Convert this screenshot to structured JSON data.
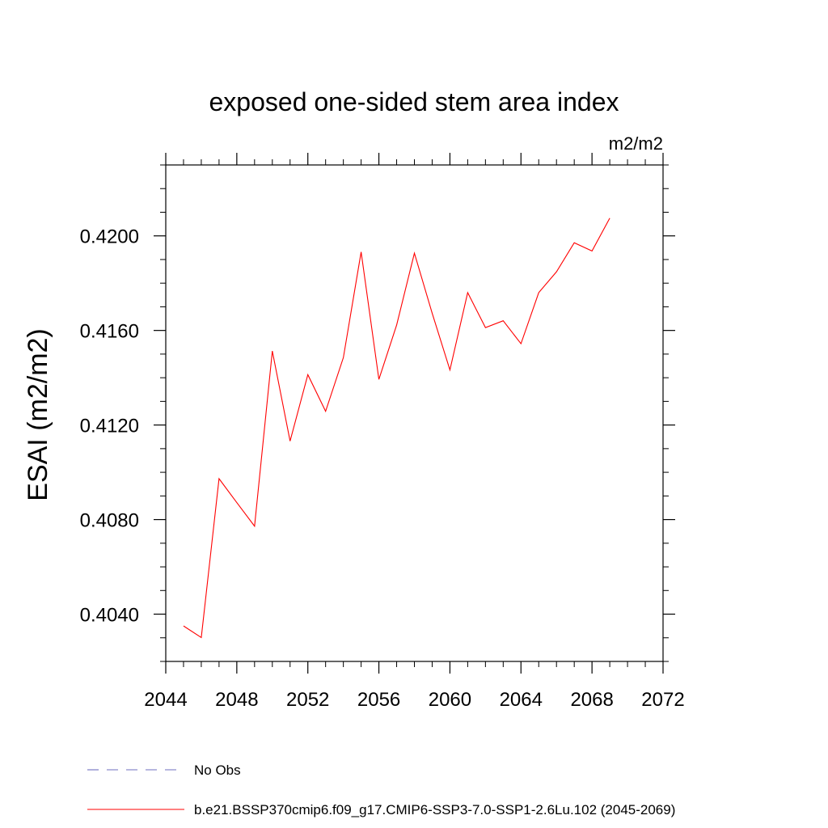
{
  "chart_data": {
    "type": "line",
    "title": "exposed one-sided stem area index",
    "units_label": "m2/m2",
    "ylabel": "ESAI  (m2/m2)",
    "xlabel": "",
    "xlim": [
      2044,
      2072
    ],
    "ylim": [
      0.402,
      0.423
    ],
    "x_ticks": [
      2044,
      2048,
      2052,
      2056,
      2060,
      2064,
      2068,
      2072
    ],
    "x_tick_labels": [
      "2044",
      "2048",
      "2052",
      "2056",
      "2060",
      "2064",
      "2068",
      "2072"
    ],
    "y_ticks": [
      0.404,
      0.408,
      0.412,
      0.416,
      0.42
    ],
    "y_tick_labels": [
      "0.4040",
      "0.4080",
      "0.4120",
      "0.4160",
      "0.4200"
    ],
    "grid": false,
    "legend_position": "bottom",
    "series": [
      {
        "name": "b.e21.BSSP370cmip6.f09_g17.CMIP6-SSP3-7.0-SSP1-2.6Lu.102 (2045-2069)",
        "color": "#ff0000",
        "style": "solid",
        "x": [
          2045,
          2046,
          2047,
          2048,
          2049,
          2050,
          2051,
          2052,
          2053,
          2054,
          2055,
          2056,
          2057,
          2058,
          2059,
          2060,
          2061,
          2062,
          2063,
          2064,
          2065,
          2066,
          2067,
          2068,
          2069
        ],
        "y": [
          0.4035,
          0.40301,
          0.40973,
          0.40872,
          0.40772,
          0.41513,
          0.41132,
          0.41413,
          0.41258,
          0.41485,
          0.41932,
          0.41393,
          0.41623,
          0.41927,
          0.41673,
          0.41433,
          0.4176,
          0.41612,
          0.41641,
          0.41544,
          0.4176,
          0.41848,
          0.41971,
          0.41936,
          0.42075
        ]
      },
      {
        "name": "No Obs",
        "color": "#6f6fbf",
        "style": "dashed",
        "x": [],
        "y": []
      }
    ]
  },
  "legend": [
    {
      "label": "No Obs",
      "color": "#6f6fbf",
      "style": "dashed"
    },
    {
      "label": "b.e21.BSSP370cmip6.f09_g17.CMIP6-SSP3-7.0-SSP1-2.6Lu.102 (2045-2069)",
      "color": "#ff0000",
      "style": "solid"
    }
  ]
}
